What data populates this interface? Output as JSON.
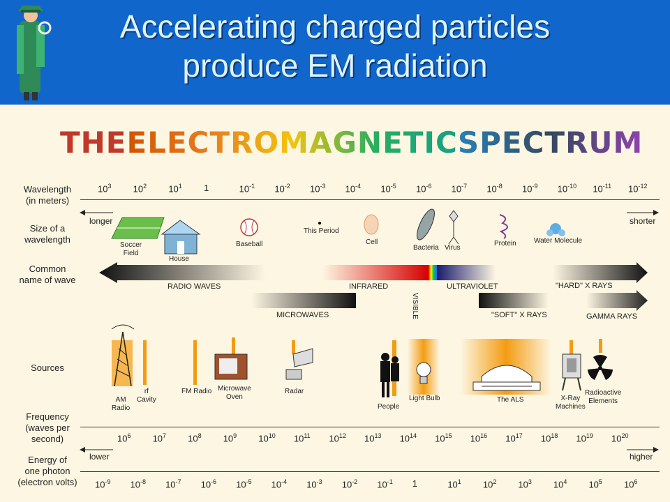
{
  "slide": {
    "title_line1": "Accelerating charged particles",
    "title_line2": "produce EM radiation"
  },
  "diagram": {
    "heading": [
      "THE ",
      "ELECTROMAGNETIC ",
      "SPECTRUM"
    ],
    "heading_colors": [
      "#c0392b",
      "#d35400",
      "#e67e22",
      "#f1c40f",
      "#27ae60",
      "#2980b9",
      "#34495e",
      "#8e44ad"
    ],
    "row_labels": {
      "wavelength": "Wavelength\n(in meters)",
      "size": "Size of a\nwavelength",
      "common": "Common\nname of wave",
      "sources": "Sources",
      "frequency": "Frequency\n(waves per\nsecond)",
      "energy": "Energy of\none photon\n(electron volts)"
    },
    "wavelength_ticks": [
      {
        "base": "10",
        "exp": "3"
      },
      {
        "base": "10",
        "exp": "2"
      },
      {
        "base": "10",
        "exp": "1"
      },
      {
        "base": "1",
        "exp": ""
      },
      {
        "base": "10",
        "exp": "-1"
      },
      {
        "base": "10",
        "exp": "-2"
      },
      {
        "base": "10",
        "exp": "-3"
      },
      {
        "base": "10",
        "exp": "-4"
      },
      {
        "base": "10",
        "exp": "-5"
      },
      {
        "base": "10",
        "exp": "-6"
      },
      {
        "base": "10",
        "exp": "-7"
      },
      {
        "base": "10",
        "exp": "-8"
      },
      {
        "base": "10",
        "exp": "-9"
      },
      {
        "base": "10",
        "exp": "-10"
      },
      {
        "base": "10",
        "exp": "-11"
      },
      {
        "base": "10",
        "exp": "-12"
      }
    ],
    "frequency_ticks": [
      {
        "base": "10",
        "exp": "6"
      },
      {
        "base": "10",
        "exp": "7"
      },
      {
        "base": "10",
        "exp": "8"
      },
      {
        "base": "10",
        "exp": "9"
      },
      {
        "base": "10",
        "exp": "10"
      },
      {
        "base": "10",
        "exp": "11"
      },
      {
        "base": "10",
        "exp": "12"
      },
      {
        "base": "10",
        "exp": "13"
      },
      {
        "base": "10",
        "exp": "14"
      },
      {
        "base": "10",
        "exp": "15"
      },
      {
        "base": "10",
        "exp": "16"
      },
      {
        "base": "10",
        "exp": "17"
      },
      {
        "base": "10",
        "exp": "18"
      },
      {
        "base": "10",
        "exp": "19"
      },
      {
        "base": "10",
        "exp": "20"
      }
    ],
    "energy_ticks": [
      {
        "base": "10",
        "exp": "-9"
      },
      {
        "base": "10",
        "exp": "-8"
      },
      {
        "base": "10",
        "exp": "-7"
      },
      {
        "base": "10",
        "exp": "-6"
      },
      {
        "base": "10",
        "exp": "-5"
      },
      {
        "base": "10",
        "exp": "-4"
      },
      {
        "base": "10",
        "exp": "-3"
      },
      {
        "base": "10",
        "exp": "-2"
      },
      {
        "base": "10",
        "exp": "-1"
      },
      {
        "base": "1",
        "exp": ""
      },
      {
        "base": "10",
        "exp": "1"
      },
      {
        "base": "10",
        "exp": "2"
      },
      {
        "base": "10",
        "exp": "3"
      },
      {
        "base": "10",
        "exp": "4"
      },
      {
        "base": "10",
        "exp": "5"
      },
      {
        "base": "10",
        "exp": "6"
      }
    ],
    "arrows": {
      "longer": "longer",
      "shorter": "shorter",
      "lower": "lower",
      "higher": "higher"
    },
    "size_examples": {
      "soccer": "Soccer\nField",
      "house": "House",
      "baseball": "Baseball",
      "period": "This Period",
      "cell": "Cell",
      "bacteria": "Bacteria",
      "virus": "Virus",
      "protein": "Protein",
      "water": "Water Molecule"
    },
    "wave_names": {
      "radio": "RADIO WAVES",
      "infrared": "INFRARED",
      "visible": "VISIBLE",
      "ultraviolet": "ULTRAVIOLET",
      "hard_xray": "\"HARD\" X RAYS",
      "microwaves": "MICROWAVES",
      "soft_xray": "\"SOFT\" X RAYS",
      "gamma": "GAMMA RAYS"
    },
    "sources": {
      "am": "AM\nRadio",
      "rf": "rf\nCavity",
      "fm": "FM Radio",
      "microwave": "Microwave\nOven",
      "radar": "Radar",
      "people": "People",
      "bulb": "Light Bulb",
      "als": "The ALS",
      "xray": "X-Ray\nMachines",
      "radioactive": "Radioactive\nElements"
    }
  }
}
